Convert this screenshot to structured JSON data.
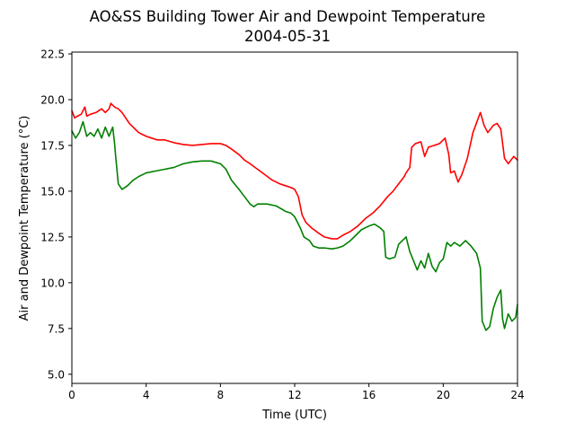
{
  "chart_data": {
    "type": "line",
    "title": "AO&SS Building Tower Air and Dewpoint Temperature",
    "subtitle": "2004-05-31",
    "xlabel": "Time (UTC)",
    "ylabel": "Air and Dewpoint Temperature (°C)",
    "xlim": [
      0,
      24
    ],
    "ylim": [
      4.5,
      22.6
    ],
    "xticks": [
      0,
      4,
      8,
      12,
      16,
      20,
      24
    ],
    "xtick_labels": [
      "0",
      "4",
      "8",
      "12",
      "16",
      "20",
      "24"
    ],
    "yticks": [
      5.0,
      7.5,
      10.0,
      12.5,
      15.0,
      17.5,
      20.0,
      22.5
    ],
    "ytick_labels": [
      "5.0",
      "7.5",
      "10.0",
      "12.5",
      "15.0",
      "17.5",
      "20.0",
      "22.5"
    ],
    "grid": false,
    "legend": "none",
    "series": [
      {
        "color": "#ff0000",
        "points": [
          [
            0.0,
            19.4
          ],
          [
            0.15,
            19.0
          ],
          [
            0.3,
            19.1
          ],
          [
            0.5,
            19.2
          ],
          [
            0.7,
            19.6
          ],
          [
            0.8,
            19.1
          ],
          [
            1.0,
            19.2
          ],
          [
            1.3,
            19.3
          ],
          [
            1.6,
            19.5
          ],
          [
            1.8,
            19.3
          ],
          [
            2.0,
            19.5
          ],
          [
            2.1,
            19.8
          ],
          [
            2.3,
            19.6
          ],
          [
            2.5,
            19.5
          ],
          [
            2.7,
            19.3
          ],
          [
            2.9,
            19.0
          ],
          [
            3.1,
            18.7
          ],
          [
            3.4,
            18.4
          ],
          [
            3.6,
            18.2
          ],
          [
            3.8,
            18.1
          ],
          [
            4.0,
            18.0
          ],
          [
            4.3,
            17.9
          ],
          [
            4.6,
            17.8
          ],
          [
            5.0,
            17.8
          ],
          [
            5.5,
            17.65
          ],
          [
            6.0,
            17.55
          ],
          [
            6.5,
            17.5
          ],
          [
            7.0,
            17.55
          ],
          [
            7.5,
            17.6
          ],
          [
            8.0,
            17.6
          ],
          [
            8.3,
            17.5
          ],
          [
            8.6,
            17.3
          ],
          [
            9.0,
            17.0
          ],
          [
            9.3,
            16.7
          ],
          [
            9.6,
            16.5
          ],
          [
            10.0,
            16.2
          ],
          [
            10.4,
            15.9
          ],
          [
            10.8,
            15.6
          ],
          [
            11.2,
            15.4
          ],
          [
            11.5,
            15.3
          ],
          [
            11.8,
            15.2
          ],
          [
            12.0,
            15.1
          ],
          [
            12.2,
            14.7
          ],
          [
            12.4,
            13.7
          ],
          [
            12.6,
            13.3
          ],
          [
            12.9,
            13.0
          ],
          [
            13.3,
            12.7
          ],
          [
            13.6,
            12.5
          ],
          [
            14.0,
            12.4
          ],
          [
            14.3,
            12.4
          ],
          [
            14.6,
            12.6
          ],
          [
            15.0,
            12.8
          ],
          [
            15.4,
            13.1
          ],
          [
            15.8,
            13.5
          ],
          [
            16.2,
            13.8
          ],
          [
            16.6,
            14.2
          ],
          [
            17.0,
            14.7
          ],
          [
            17.3,
            15.0
          ],
          [
            17.6,
            15.4
          ],
          [
            17.9,
            15.8
          ],
          [
            18.0,
            16.0
          ],
          [
            18.2,
            16.3
          ],
          [
            18.3,
            17.4
          ],
          [
            18.5,
            17.6
          ],
          [
            18.8,
            17.7
          ],
          [
            19.0,
            16.9
          ],
          [
            19.2,
            17.4
          ],
          [
            19.5,
            17.5
          ],
          [
            19.8,
            17.6
          ],
          [
            20.1,
            17.9
          ],
          [
            20.3,
            17.0
          ],
          [
            20.4,
            16.0
          ],
          [
            20.6,
            16.1
          ],
          [
            20.8,
            15.5
          ],
          [
            21.0,
            15.9
          ],
          [
            21.3,
            16.8
          ],
          [
            21.6,
            18.2
          ],
          [
            22.0,
            19.3
          ],
          [
            22.2,
            18.6
          ],
          [
            22.4,
            18.2
          ],
          [
            22.7,
            18.6
          ],
          [
            22.9,
            18.7
          ],
          [
            23.1,
            18.4
          ],
          [
            23.3,
            16.8
          ],
          [
            23.5,
            16.5
          ],
          [
            23.8,
            16.9
          ],
          [
            24.0,
            16.7
          ]
        ]
      },
      {
        "color": "#008000",
        "points": [
          [
            0.0,
            18.3
          ],
          [
            0.2,
            17.9
          ],
          [
            0.4,
            18.2
          ],
          [
            0.6,
            18.8
          ],
          [
            0.8,
            18.0
          ],
          [
            1.0,
            18.2
          ],
          [
            1.2,
            18.0
          ],
          [
            1.4,
            18.4
          ],
          [
            1.6,
            17.9
          ],
          [
            1.8,
            18.5
          ],
          [
            2.0,
            18.0
          ],
          [
            2.2,
            18.5
          ],
          [
            2.3,
            17.6
          ],
          [
            2.35,
            17.0
          ],
          [
            2.5,
            15.4
          ],
          [
            2.7,
            15.1
          ],
          [
            3.0,
            15.3
          ],
          [
            3.3,
            15.6
          ],
          [
            3.6,
            15.8
          ],
          [
            4.0,
            16.0
          ],
          [
            4.5,
            16.1
          ],
          [
            5.0,
            16.2
          ],
          [
            5.5,
            16.3
          ],
          [
            6.0,
            16.5
          ],
          [
            6.5,
            16.6
          ],
          [
            7.0,
            16.65
          ],
          [
            7.5,
            16.65
          ],
          [
            8.0,
            16.5
          ],
          [
            8.3,
            16.2
          ],
          [
            8.6,
            15.6
          ],
          [
            9.0,
            15.1
          ],
          [
            9.3,
            14.7
          ],
          [
            9.6,
            14.3
          ],
          [
            9.8,
            14.15
          ],
          [
            10.0,
            14.3
          ],
          [
            10.5,
            14.3
          ],
          [
            11.0,
            14.2
          ],
          [
            11.5,
            13.9
          ],
          [
            11.8,
            13.8
          ],
          [
            12.0,
            13.6
          ],
          [
            12.3,
            13.0
          ],
          [
            12.5,
            12.5
          ],
          [
            12.8,
            12.3
          ],
          [
            13.0,
            12.0
          ],
          [
            13.3,
            11.9
          ],
          [
            13.6,
            11.9
          ],
          [
            14.0,
            11.85
          ],
          [
            14.3,
            11.9
          ],
          [
            14.6,
            12.0
          ],
          [
            15.0,
            12.3
          ],
          [
            15.3,
            12.6
          ],
          [
            15.6,
            12.9
          ],
          [
            16.0,
            13.1
          ],
          [
            16.3,
            13.2
          ],
          [
            16.6,
            13.0
          ],
          [
            16.8,
            12.8
          ],
          [
            16.9,
            11.4
          ],
          [
            17.1,
            11.3
          ],
          [
            17.4,
            11.4
          ],
          [
            17.6,
            12.1
          ],
          [
            17.8,
            12.3
          ],
          [
            18.0,
            12.5
          ],
          [
            18.2,
            11.7
          ],
          [
            18.4,
            11.2
          ],
          [
            18.6,
            10.7
          ],
          [
            18.8,
            11.2
          ],
          [
            19.0,
            10.8
          ],
          [
            19.2,
            11.6
          ],
          [
            19.4,
            10.9
          ],
          [
            19.6,
            10.6
          ],
          [
            19.8,
            11.1
          ],
          [
            20.0,
            11.3
          ],
          [
            20.2,
            12.2
          ],
          [
            20.4,
            12.0
          ],
          [
            20.6,
            12.2
          ],
          [
            20.9,
            12.0
          ],
          [
            21.2,
            12.3
          ],
          [
            21.5,
            12.0
          ],
          [
            21.8,
            11.6
          ],
          [
            22.0,
            10.8
          ],
          [
            22.1,
            7.9
          ],
          [
            22.3,
            7.4
          ],
          [
            22.5,
            7.6
          ],
          [
            22.7,
            8.6
          ],
          [
            22.9,
            9.2
          ],
          [
            23.1,
            9.6
          ],
          [
            23.2,
            8.0
          ],
          [
            23.3,
            7.5
          ],
          [
            23.5,
            8.3
          ],
          [
            23.7,
            7.9
          ],
          [
            23.9,
            8.1
          ],
          [
            24.0,
            8.8
          ]
        ]
      }
    ]
  }
}
